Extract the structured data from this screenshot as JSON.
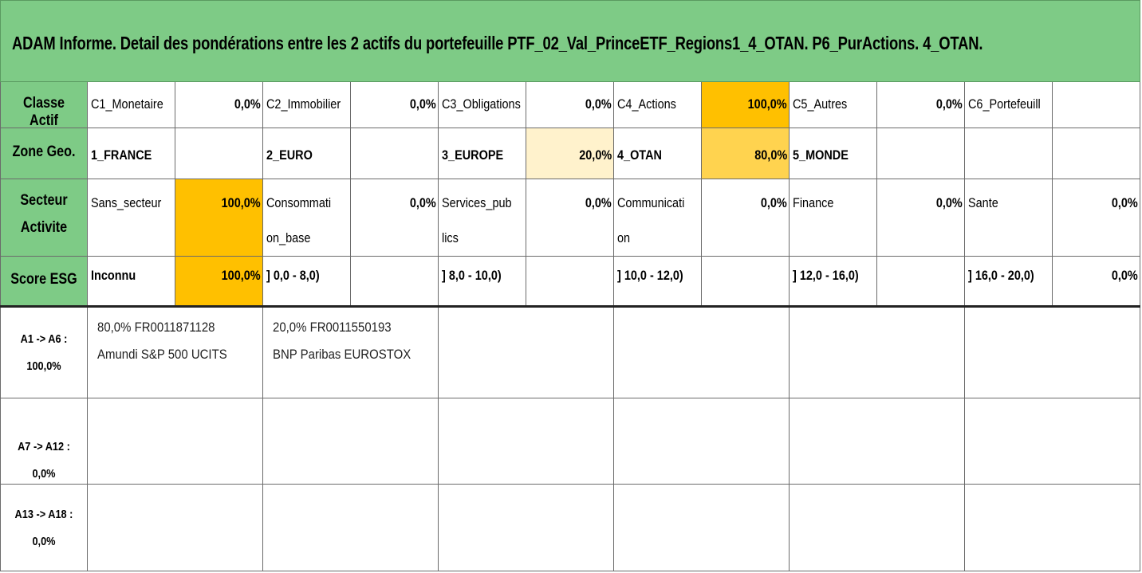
{
  "title": "ADAM Informe. Detail des pondérations entre les 2 actifs du portefeuille PTF_02_Val_PrinceETF_Regions1_4_OTAN. P6_PurActions. 4_OTAN.",
  "colors": {
    "header_green": "#7ECB86",
    "highlight_100": "#FFC000",
    "highlight_80": "#FFD34F",
    "highlight_20": "#FFF2CC"
  },
  "classe_actif": {
    "label": "Classe Actif",
    "items": [
      {
        "name": "C1_Monetaire",
        "value": "0,0%"
      },
      {
        "name": "C2_Immobilier",
        "value": "0,0%"
      },
      {
        "name": "C3_Obligations",
        "value": "0,0%"
      },
      {
        "name": "C4_Actions",
        "value": "100,0%"
      },
      {
        "name": "C5_Autres",
        "value": "0,0%"
      },
      {
        "name": "C6_Portefeuill",
        "value": ""
      }
    ]
  },
  "zone_geo": {
    "label": "Zone Geo.",
    "items": [
      {
        "name": "1_FRANCE",
        "value": ""
      },
      {
        "name": "2_EURO",
        "value": ""
      },
      {
        "name": "3_EUROPE",
        "value": "20,0%"
      },
      {
        "name": "4_OTAN",
        "value": "80,0%"
      },
      {
        "name": "5_MONDE",
        "value": ""
      },
      {
        "name": "",
        "value": ""
      }
    ]
  },
  "secteur": {
    "label_line1": "Secteur",
    "label_line2": "Activite",
    "items": [
      {
        "name1": "Sans_secteur",
        "name2": "",
        "value": "100,0%"
      },
      {
        "name1": "Consommati",
        "name2": "on_base",
        "value": "0,0%"
      },
      {
        "name1": "Services_pub",
        "name2": "lics",
        "value": "0,0%"
      },
      {
        "name1": "Communicati",
        "name2": "on",
        "value": "0,0%"
      },
      {
        "name1": "Finance",
        "name2": "",
        "value": "0,0%"
      },
      {
        "name1": "Sante",
        "name2": "",
        "value": "0,0%"
      }
    ]
  },
  "score_esg": {
    "label": "Score ESG",
    "items": [
      {
        "name": "Inconnu",
        "value": "100,0%"
      },
      {
        "name": "] 0,0 - 8,0)",
        "value": ""
      },
      {
        "name": "] 8,0 - 10,0)",
        "value": ""
      },
      {
        "name": "] 10,0 - 12,0)",
        "value": ""
      },
      {
        "name": "] 12,0 - 16,0)",
        "value": ""
      },
      {
        "name": "] 16,0 - 20,0)",
        "value": "0,0%"
      }
    ]
  },
  "assets": {
    "row1_label_line1": "A1 -> A6 :",
    "row1_label_line2": "100,0%",
    "row2_label": "A7 -> A12 : 0,0%",
    "row3_label_line1": "A13 -> A18 :",
    "row3_label_line2": "0,0%",
    "a1_line1": "80,0% FR0011871128",
    "a1_line2": "Amundi S&P 500 UCITS",
    "a2_line1": "20,0% FR0011550193",
    "a2_line2": "BNP Paribas EUROSTOX"
  }
}
